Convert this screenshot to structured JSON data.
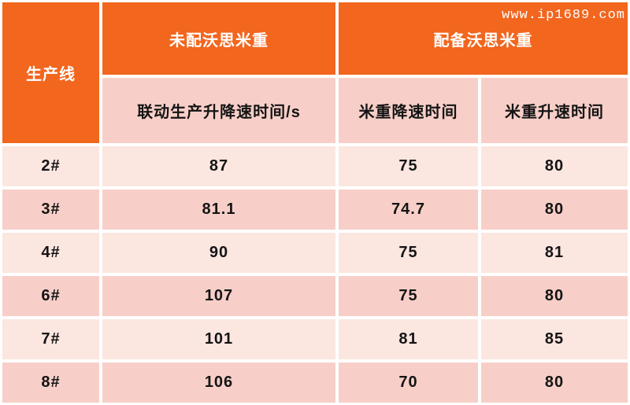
{
  "watermark": "www.ip1689.com",
  "colors": {
    "orange": "#F2661E",
    "pink_light": "#FCE6E0",
    "pink_dark": "#F8CFC8",
    "text_dark": "#141414",
    "text_light": "#FFFFFF"
  },
  "table": {
    "row_header_label": "生产线",
    "group_headers": [
      {
        "label": "未配沃思米重"
      },
      {
        "label": "配备沃思米重"
      }
    ],
    "sub_headers": [
      "联动生产升降速时间/s",
      "米重降速时间",
      "米重升速时间"
    ],
    "rows": [
      {
        "line": "2#",
        "values": [
          "87",
          "75",
          "80"
        ]
      },
      {
        "line": "3#",
        "values": [
          "81.1",
          "74.7",
          "80"
        ]
      },
      {
        "line": "4#",
        "values": [
          "90",
          "75",
          "81"
        ]
      },
      {
        "line": "6#",
        "values": [
          "107",
          "75",
          "80"
        ]
      },
      {
        "line": "7#",
        "values": [
          "101",
          "81",
          "85"
        ]
      },
      {
        "line": "8#",
        "values": [
          "106",
          "70",
          "80"
        ]
      }
    ]
  },
  "chart_data": {
    "type": "table",
    "title": "",
    "index_label": "生产线",
    "column_groups": [
      {
        "label": "未配沃思米重",
        "columns": [
          "联动生产升降速时间/s"
        ]
      },
      {
        "label": "配备沃思米重",
        "columns": [
          "米重降速时间",
          "米重升速时间"
        ]
      }
    ],
    "rows": [
      {
        "生产线": "2#",
        "联动生产升降速时间/s": 87,
        "米重降速时间": 75,
        "米重升速时间": 80
      },
      {
        "生产线": "3#",
        "联动生产升降速时间/s": 81.1,
        "米重降速时间": 74.7,
        "米重升速时间": 80
      },
      {
        "生产线": "4#",
        "联动生产升降速时间/s": 90,
        "米重降速时间": 75,
        "米重升速时间": 81
      },
      {
        "生产线": "6#",
        "联动生产升降速时间/s": 107,
        "米重降速时间": 75,
        "米重升速时间": 80
      },
      {
        "生产线": "7#",
        "联动生产升降速时间/s": 101,
        "米重降速时间": 81,
        "米重升速时间": 85
      },
      {
        "生产线": "8#",
        "联动生产升降速时间/s": 106,
        "米重降速时间": 70,
        "米重升速时间": 80
      }
    ]
  }
}
